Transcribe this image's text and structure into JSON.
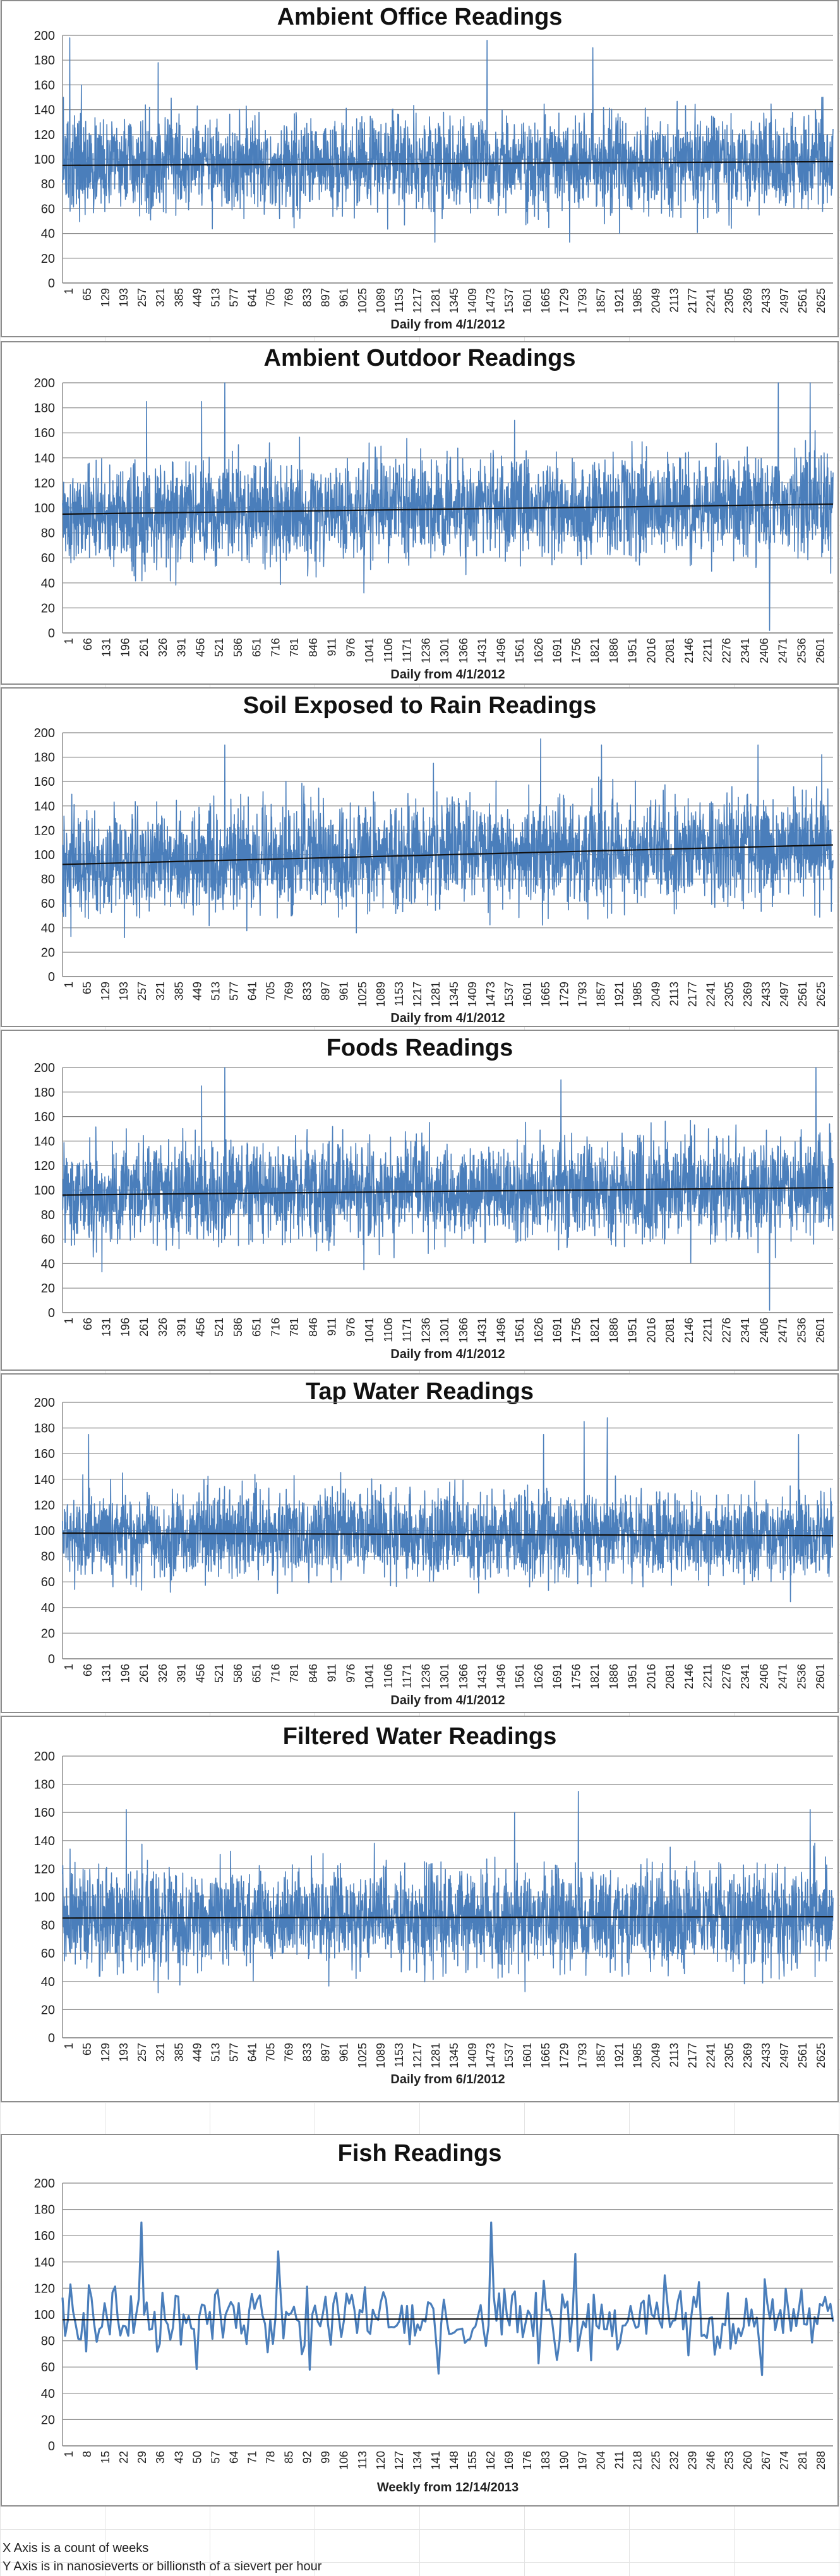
{
  "chart_data": [
    {
      "type": "line",
      "title": "Ambient Office Readings",
      "xlabel": "Daily from 4/1/2012",
      "ylabel": "",
      "ylim": [
        0,
        200
      ],
      "yticks": [
        0,
        20,
        40,
        60,
        80,
        100,
        120,
        140,
        160,
        180,
        200
      ],
      "x_tick_labels": [
        "1",
        "65",
        "129",
        "193",
        "257",
        "321",
        "385",
        "449",
        "513",
        "577",
        "641",
        "705",
        "769",
        "833",
        "897",
        "961",
        "1025",
        "1089",
        "1153",
        "1217",
        "1281",
        "1345",
        "1409",
        "1473",
        "1537",
        "1601",
        "1665",
        "1729",
        "1793",
        "1857",
        "1921",
        "1985",
        "2049",
        "2113",
        "2177",
        "2241",
        "2305",
        "2369",
        "2433",
        "2497",
        "2561",
        "2625"
      ],
      "n_points": 2660,
      "mean": 97,
      "spread": 19,
      "grid": true,
      "legend": "none",
      "series_color": "#4a7ebb",
      "trendline": {
        "start": 95,
        "end": 98
      },
      "spikes": [
        [
          3,
          150
        ],
        [
          25,
          198
        ],
        [
          65,
          160
        ],
        [
          300,
          142
        ],
        [
          330,
          178
        ],
        [
          1285,
          33
        ],
        [
          1465,
          196
        ],
        [
          1830,
          190
        ],
        [
          1750,
          33
        ],
        [
          2620,
          150
        ]
      ]
    },
    {
      "type": "line",
      "title": "Ambient Outdoor Readings",
      "xlabel": "Daily from 4/1/2012",
      "ylabel": "",
      "ylim": [
        0,
        200
      ],
      "yticks": [
        0,
        20,
        40,
        60,
        80,
        100,
        120,
        140,
        160,
        180,
        200
      ],
      "x_tick_labels": [
        "1",
        "66",
        "131",
        "196",
        "261",
        "326",
        "391",
        "456",
        "521",
        "586",
        "651",
        "716",
        "781",
        "846",
        "911",
        "976",
        "1041",
        "1106",
        "1171",
        "1236",
        "1301",
        "1366",
        "1431",
        "1496",
        "1561",
        "1626",
        "1691",
        "1756",
        "1821",
        "1886",
        "1951",
        "2016",
        "2081",
        "2146",
        "2211",
        "2276",
        "2341",
        "2406",
        "2471",
        "2536",
        "2601"
      ],
      "n_points": 2660,
      "mean": 100,
      "spread": 20,
      "grid": true,
      "legend": "none",
      "series_color": "#4a7ebb",
      "trendline": {
        "start": 95,
        "end": 103
      },
      "spikes": [
        [
          290,
          185
        ],
        [
          480,
          185
        ],
        [
          560,
          200
        ],
        [
          2440,
          2
        ],
        [
          2470,
          200
        ],
        [
          2580,
          200
        ],
        [
          1560,
          170
        ],
        [
          1040,
          32
        ]
      ]
    },
    {
      "type": "line",
      "title": "Soil Exposed to Rain Readings",
      "xlabel": "Daily from 4/1/2012",
      "ylabel": "",
      "ylim": [
        0,
        200
      ],
      "yticks": [
        0,
        20,
        40,
        60,
        80,
        100,
        120,
        140,
        160,
        180,
        200
      ],
      "x_tick_labels": [
        "1",
        "65",
        "129",
        "193",
        "257",
        "321",
        "385",
        "449",
        "513",
        "577",
        "641",
        "705",
        "769",
        "833",
        "897",
        "961",
        "1025",
        "1089",
        "1153",
        "1217",
        "1281",
        "1345",
        "1409",
        "1473",
        "1537",
        "1601",
        "1665",
        "1729",
        "1793",
        "1857",
        "1921",
        "1985",
        "2049",
        "2113",
        "2177",
        "2241",
        "2305",
        "2369",
        "2433",
        "2497",
        "2561",
        "2625"
      ],
      "n_points": 2660,
      "mean": 100,
      "spread": 22,
      "grid": true,
      "legend": "none",
      "series_color": "#4a7ebb",
      "trendline": {
        "start": 92,
        "end": 108
      },
      "spikes": [
        [
          560,
          190
        ],
        [
          1650,
          195
        ],
        [
          1860,
          190
        ],
        [
          2400,
          190
        ],
        [
          2620,
          182
        ],
        [
          1280,
          175
        ]
      ]
    },
    {
      "type": "line",
      "title": "Foods Readings",
      "xlabel": "Daily from 4/1/2012",
      "ylabel": "",
      "ylim": [
        0,
        200
      ],
      "yticks": [
        0,
        20,
        40,
        60,
        80,
        100,
        120,
        140,
        160,
        180,
        200
      ],
      "x_tick_labels": [
        "1",
        "66",
        "131",
        "196",
        "261",
        "326",
        "391",
        "456",
        "521",
        "586",
        "651",
        "716",
        "781",
        "846",
        "911",
        "976",
        "1041",
        "1106",
        "1171",
        "1236",
        "1301",
        "1366",
        "1431",
        "1496",
        "1561",
        "1626",
        "1691",
        "1756",
        "1821",
        "1886",
        "1951",
        "2016",
        "2081",
        "2146",
        "2211",
        "2276",
        "2341",
        "2406",
        "2471",
        "2536",
        "2601"
      ],
      "n_points": 2660,
      "mean": 100,
      "spread": 20,
      "grid": true,
      "legend": "none",
      "series_color": "#4a7ebb",
      "trendline": {
        "start": 96,
        "end": 102
      },
      "spikes": [
        [
          560,
          200
        ],
        [
          480,
          185
        ],
        [
          1720,
          190
        ],
        [
          2440,
          2
        ],
        [
          2600,
          200
        ],
        [
          1040,
          35
        ]
      ]
    },
    {
      "type": "line",
      "title": "Tap Water Readings",
      "xlabel": "Daily from 4/1/2012",
      "ylabel": "",
      "ylim": [
        0,
        200
      ],
      "yticks": [
        0,
        20,
        40,
        60,
        80,
        100,
        120,
        140,
        160,
        180,
        200
      ],
      "x_tick_labels": [
        "1",
        "66",
        "131",
        "196",
        "261",
        "326",
        "391",
        "456",
        "521",
        "586",
        "651",
        "716",
        "781",
        "846",
        "911",
        "976",
        "1041",
        "1106",
        "1171",
        "1236",
        "1301",
        "1366",
        "1431",
        "1496",
        "1561",
        "1626",
        "1691",
        "1756",
        "1821",
        "1886",
        "1951",
        "2016",
        "2081",
        "2146",
        "2211",
        "2276",
        "2341",
        "2406",
        "2471",
        "2536",
        "2601"
      ],
      "n_points": 2660,
      "mean": 97,
      "spread": 17,
      "grid": true,
      "legend": "none",
      "series_color": "#4a7ebb",
      "trendline": {
        "start": 98,
        "end": 96
      },
      "spikes": [
        [
          90,
          175
        ],
        [
          1660,
          175
        ],
        [
          1800,
          185
        ],
        [
          2540,
          175
        ],
        [
          1880,
          188
        ]
      ]
    },
    {
      "type": "line",
      "title": "Filtered Water Readings",
      "xlabel": "Daily from 6/1/2012",
      "ylabel": "",
      "ylim": [
        0,
        200
      ],
      "yticks": [
        0,
        20,
        40,
        60,
        80,
        100,
        120,
        140,
        160,
        180,
        200
      ],
      "x_tick_labels": [
        "1",
        "65",
        "129",
        "193",
        "257",
        "321",
        "385",
        "449",
        "513",
        "577",
        "641",
        "705",
        "769",
        "833",
        "897",
        "961",
        "1025",
        "1089",
        "1153",
        "1217",
        "1281",
        "1345",
        "1409",
        "1473",
        "1537",
        "1601",
        "1665",
        "1729",
        "1793",
        "1857",
        "1921",
        "1985",
        "2049",
        "2113",
        "2177",
        "2241",
        "2305",
        "2369",
        "2433",
        "2497",
        "2561",
        "2625"
      ],
      "n_points": 2660,
      "mean": 86,
      "spread": 18,
      "grid": true,
      "legend": "none",
      "series_color": "#4a7ebb",
      "trendline": {
        "start": 85,
        "end": 86
      },
      "spikes": [
        [
          220,
          162
        ],
        [
          1780,
          175
        ],
        [
          2580,
          162
        ],
        [
          330,
          32
        ],
        [
          1560,
          160
        ]
      ]
    },
    {
      "type": "line",
      "title": "Fish Readings",
      "xlabel": "Weekly from 12/14/2013",
      "ylabel": "",
      "ylim": [
        0,
        200
      ],
      "yticks": [
        0,
        20,
        40,
        60,
        80,
        100,
        120,
        140,
        160,
        180,
        200
      ],
      "x_tick_labels": [
        "1",
        "8",
        "15",
        "22",
        "29",
        "36",
        "43",
        "50",
        "57",
        "64",
        "71",
        "78",
        "85",
        "92",
        "99",
        "106",
        "113",
        "120",
        "127",
        "134",
        "141",
        "148",
        "155",
        "162",
        "169",
        "176",
        "183",
        "190",
        "197",
        "204",
        "211",
        "218",
        "225",
        "232",
        "239",
        "246",
        "253",
        "260",
        "267",
        "274",
        "281",
        "288"
      ],
      "n_points": 294,
      "mean": 96,
      "spread": 14,
      "grid": true,
      "legend": "none",
      "series_color": "#4a7ebb",
      "trendline": {
        "start": 96,
        "end": 97
      },
      "spikes": [
        [
          30,
          170
        ],
        [
          163,
          170
        ],
        [
          82,
          148
        ],
        [
          195,
          146
        ],
        [
          266,
          54
        ],
        [
          143,
          55
        ],
        [
          94,
          58
        ]
      ]
    }
  ],
  "notes": {
    "line1": "X Axis is a count of weeks",
    "line2": "Y Axis is in nanosieverts or billionsth of a sievert per hour"
  }
}
